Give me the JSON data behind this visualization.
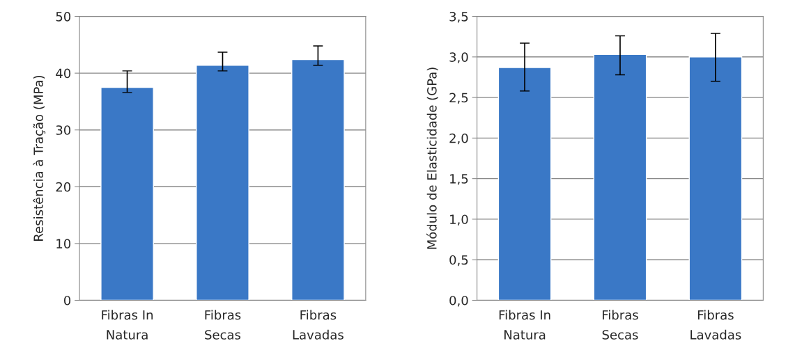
{
  "chart_data": [
    {
      "type": "bar",
      "categories": [
        "Fibras In\nNatura",
        "Fibras\nSecas",
        "Fibras\nLavadas"
      ],
      "ylabel": "Resistência à Tração (MPa)",
      "series": [
        {
          "color": "#3a78c6",
          "values": [
            37.5,
            41.4,
            42.4
          ],
          "errors": [
            [
              36.6,
              40.4
            ],
            [
              40.4,
              43.7
            ],
            [
              41.4,
              44.8
            ]
          ]
        }
      ],
      "ylim": [
        0,
        50
      ],
      "yticks": [
        0,
        10,
        20,
        30,
        40,
        50
      ],
      "grid": "y"
    },
    {
      "type": "bar",
      "categories": [
        "Fibras In\nNatura",
        "Fibras\nSecas",
        "Fibras\nLavadas"
      ],
      "ylabel": "Módulo de Elasticidade (GPa)",
      "series": [
        {
          "color": "#3a78c6",
          "values": [
            2.87,
            3.03,
            3.0
          ],
          "errors": [
            [
              2.58,
              3.17
            ],
            [
              2.78,
              3.26
            ],
            [
              2.7,
              3.29
            ]
          ]
        }
      ],
      "ylim": [
        0,
        3.5
      ],
      "yticks": [
        {
          "value": 0,
          "label": "0,0"
        },
        {
          "value": 0.5,
          "label": "0,5"
        },
        {
          "value": 1.0,
          "label": "1,0"
        },
        {
          "value": 1.5,
          "label": "1,5"
        },
        {
          "value": 2.0,
          "label": "2,0"
        },
        {
          "value": 2.5,
          "label": "2,5"
        },
        {
          "value": 3.0,
          "label": "3,0"
        },
        {
          "value": 3.5,
          "label": "3,5"
        }
      ],
      "grid": "y"
    }
  ]
}
